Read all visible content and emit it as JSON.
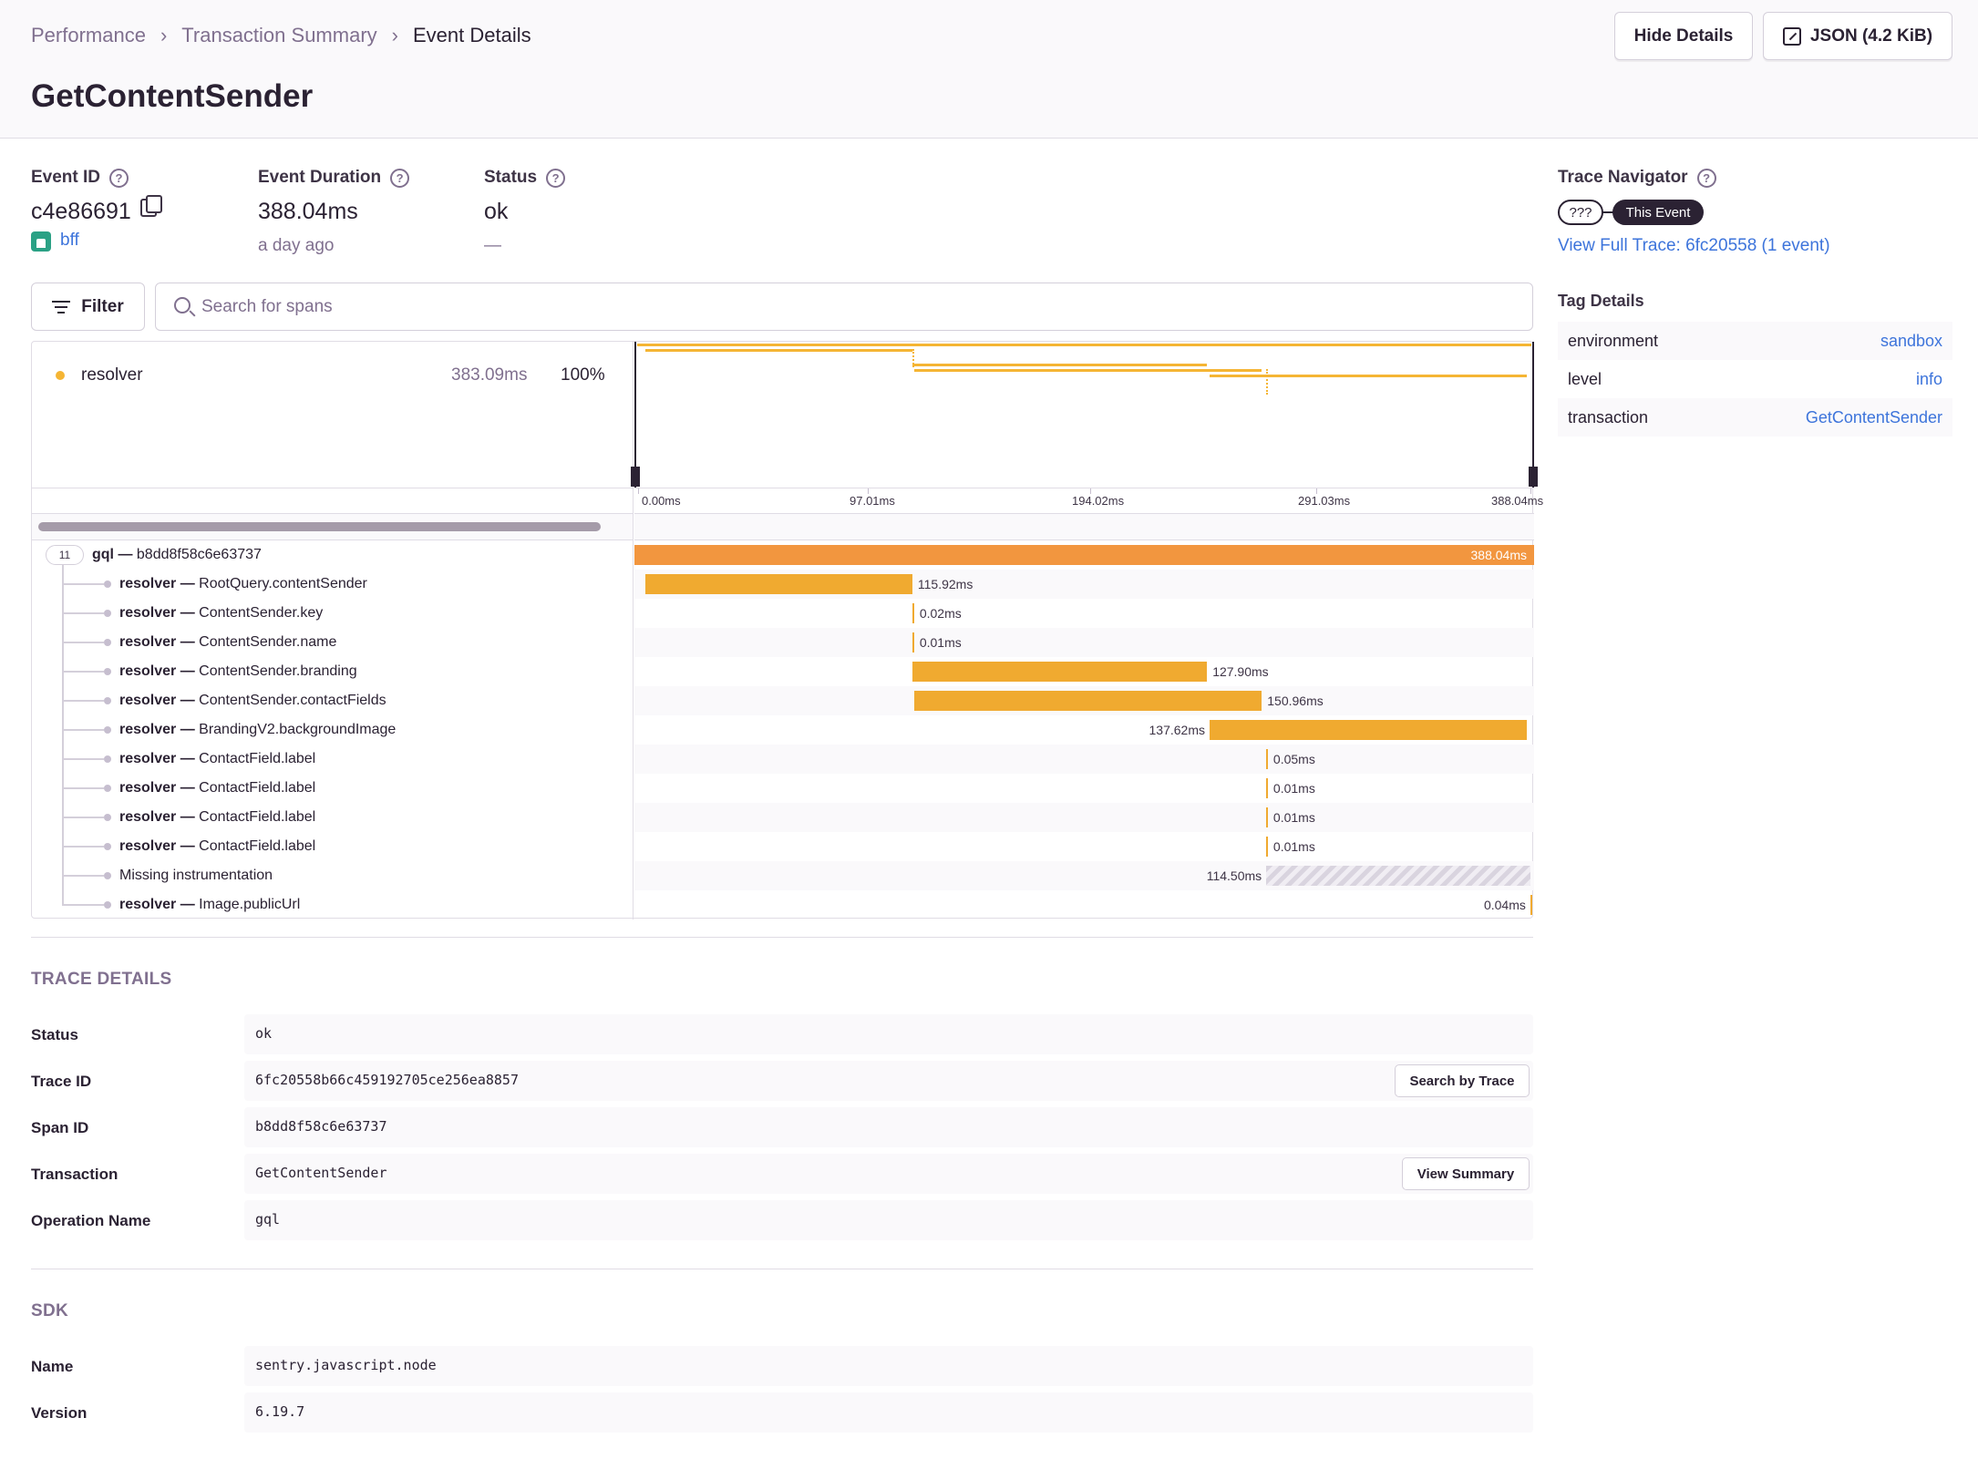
{
  "breadcrumb": [
    "Performance",
    "Transaction Summary",
    "Event Details"
  ],
  "title": "GetContentSender",
  "actions": {
    "hide_details": "Hide Details",
    "json": "JSON (4.2 KiB)"
  },
  "meta": {
    "event_id_label": "Event ID",
    "event_id": "c4e86691",
    "project": "bff",
    "duration_label": "Event Duration",
    "duration": "388.04ms",
    "duration_sub": "a day ago",
    "status_label": "Status",
    "status": "ok",
    "status_sub": "—"
  },
  "filter": {
    "label": "Filter",
    "search_placeholder": "Search for spans"
  },
  "minimap": {
    "op_name": "resolver",
    "op_duration": "383.09ms",
    "op_percent": "100%",
    "ticks": [
      "0.00ms",
      "97.01ms",
      "194.02ms",
      "291.03ms",
      "388.04ms"
    ],
    "total_ms": 388.04
  },
  "spans": [
    {
      "op": "gql",
      "desc": "b8dd8f58c6e63737",
      "start_ms": 0,
      "dur_ms": 388.04,
      "duration": "388.04ms",
      "children": "11",
      "root": true
    },
    {
      "op": "resolver",
      "desc": "RootQuery.contentSender",
      "start_ms": 3.5,
      "dur_ms": 115.92,
      "duration": "115.92ms"
    },
    {
      "op": "resolver",
      "desc": "ContentSender.key",
      "start_ms": 119.4,
      "dur_ms": 0.02,
      "duration": "0.02ms"
    },
    {
      "op": "resolver",
      "desc": "ContentSender.name",
      "start_ms": 119.4,
      "dur_ms": 0.01,
      "duration": "0.01ms"
    },
    {
      "op": "resolver",
      "desc": "ContentSender.branding",
      "start_ms": 119.4,
      "dur_ms": 127.9,
      "duration": "127.90ms"
    },
    {
      "op": "resolver",
      "desc": "ContentSender.contactFields",
      "start_ms": 120.1,
      "dur_ms": 150.96,
      "duration": "150.96ms"
    },
    {
      "op": "resolver",
      "desc": "BrandingV2.backgroundImage",
      "start_ms": 248.4,
      "dur_ms": 137.62,
      "duration": "137.62ms"
    },
    {
      "op": "resolver",
      "desc": "ContactField.label",
      "start_ms": 272.9,
      "dur_ms": 0.05,
      "duration": "0.05ms"
    },
    {
      "op": "resolver",
      "desc": "ContactField.label",
      "start_ms": 272.9,
      "dur_ms": 0.01,
      "duration": "0.01ms"
    },
    {
      "op": "resolver",
      "desc": "ContactField.label",
      "start_ms": 272.9,
      "dur_ms": 0.01,
      "duration": "0.01ms"
    },
    {
      "op": "resolver",
      "desc": "ContactField.label",
      "start_ms": 272.9,
      "dur_ms": 0.01,
      "duration": "0.01ms"
    },
    {
      "op": "",
      "desc": "Missing instrumentation",
      "start_ms": 273.0,
      "dur_ms": 114.5,
      "duration": "114.50ms",
      "missing": true
    },
    {
      "op": "resolver",
      "desc": "Image.publicUrl",
      "start_ms": 387.6,
      "dur_ms": 0.04,
      "duration": "0.04ms"
    }
  ],
  "trace_details": {
    "title": "TRACE DETAILS",
    "rows": [
      {
        "key": "Status",
        "value": "ok",
        "button": ""
      },
      {
        "key": "Trace ID",
        "value": "6fc20558b66c459192705ce256ea8857",
        "button": "Search by Trace"
      },
      {
        "key": "Span ID",
        "value": "b8dd8f58c6e63737",
        "button": ""
      },
      {
        "key": "Transaction",
        "value": "GetContentSender",
        "button": "View Summary"
      },
      {
        "key": "Operation Name",
        "value": "gql",
        "button": ""
      }
    ]
  },
  "sdk": {
    "title": "SDK",
    "rows": [
      {
        "key": "Name",
        "value": "sentry.javascript.node"
      },
      {
        "key": "Version",
        "value": "6.19.7"
      }
    ]
  },
  "trace_navigator": {
    "title": "Trace Navigator",
    "unknown": "???",
    "this_event": "This Event",
    "view_full_trace": "View Full Trace: 6fc20558 (1 event)"
  },
  "tag_details": {
    "title": "Tag Details",
    "rows": [
      {
        "key": "environment",
        "value": "sandbox"
      },
      {
        "key": "level",
        "value": "info"
      },
      {
        "key": "transaction",
        "value": "GetContentSender"
      }
    ]
  },
  "colors": {
    "span_bar": "#f0aa30",
    "root_bar": "#f2963f",
    "link": "#3d74db",
    "text": "#2b2233",
    "muted": "#80708f"
  }
}
